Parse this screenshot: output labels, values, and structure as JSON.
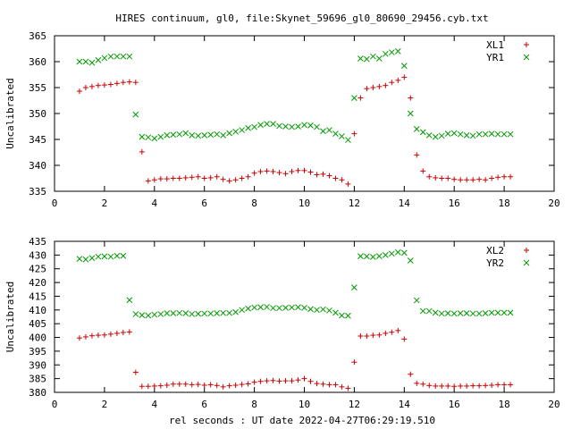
{
  "chart_data": {
    "title": "HIRES continuum, gl0, file:Skynet_59696_gl0_80690_29456.cyb.txt",
    "xlabel": "rel seconds : UT date 2022-04-27T06:29:19.510",
    "colors": {
      "series1": "#cc0000",
      "series2": "#009900"
    },
    "panels": [
      {
        "type": "scatter",
        "ylabel": "Uncalibrated",
        "xlim": [
          0,
          20
        ],
        "ylim": [
          335,
          365
        ],
        "xticks": [
          0,
          2,
          4,
          6,
          8,
          10,
          12,
          14,
          16,
          18,
          20
        ],
        "yticks": [
          335,
          340,
          345,
          350,
          355,
          360,
          365
        ],
        "grid": false,
        "legend_position": "top-right",
        "series": [
          {
            "name": "XL1",
            "marker": "plus",
            "x": [
              1.0,
              1.25,
              1.5,
              1.75,
              2.0,
              2.25,
              2.5,
              2.75,
              3.0,
              3.25,
              3.5,
              3.75,
              4.0,
              4.25,
              4.5,
              4.75,
              5.0,
              5.25,
              5.5,
              5.75,
              6.0,
              6.25,
              6.5,
              6.75,
              7.0,
              7.25,
              7.5,
              7.75,
              8.0,
              8.25,
              8.5,
              8.75,
              9.0,
              9.25,
              9.5,
              9.75,
              10.0,
              10.25,
              10.5,
              10.75,
              11.0,
              11.25,
              11.5,
              11.75,
              12.0,
              12.25,
              12.5,
              12.75,
              13.0,
              13.25,
              13.5,
              13.75,
              14.0,
              14.25,
              14.5,
              14.75,
              15.0,
              15.25,
              15.5,
              15.75,
              16.0,
              16.25,
              16.5,
              16.75,
              17.0,
              17.25,
              17.5,
              17.75,
              18.0,
              18.25
            ],
            "y": [
              354.3,
              355.0,
              355.2,
              355.4,
              355.5,
              355.6,
              355.8,
              356.0,
              356.1,
              356.0,
              342.6,
              337.0,
              337.2,
              337.4,
              337.4,
              337.5,
              337.5,
              337.6,
              337.7,
              337.8,
              337.5,
              337.6,
              337.8,
              337.3,
              337.0,
              337.2,
              337.5,
              337.8,
              338.5,
              338.8,
              338.9,
              338.8,
              338.6,
              338.4,
              338.8,
              339.0,
              339.0,
              338.7,
              338.2,
              338.3,
              338.0,
              337.5,
              337.2,
              336.4,
              346.1,
              353.0,
              354.8,
              355.0,
              355.2,
              355.4,
              356.0,
              356.4,
              357.0,
              353.0,
              342.0,
              338.9,
              337.8,
              337.6,
              337.5,
              337.5,
              337.3,
              337.2,
              337.2,
              337.2,
              337.3,
              337.2,
              337.5,
              337.7,
              337.8,
              337.8
            ]
          },
          {
            "name": "YR1",
            "marker": "cross",
            "x": [
              1.0,
              1.25,
              1.5,
              1.75,
              2.0,
              2.25,
              2.5,
              2.75,
              3.0,
              3.25,
              3.5,
              3.75,
              4.0,
              4.25,
              4.5,
              4.75,
              5.0,
              5.25,
              5.5,
              5.75,
              6.0,
              6.25,
              6.5,
              6.75,
              7.0,
              7.25,
              7.5,
              7.75,
              8.0,
              8.25,
              8.5,
              8.75,
              9.0,
              9.25,
              9.5,
              9.75,
              10.0,
              10.25,
              10.5,
              10.75,
              11.0,
              11.25,
              11.5,
              11.75,
              12.0,
              12.25,
              12.5,
              12.75,
              13.0,
              13.25,
              13.5,
              13.75,
              14.0,
              14.25,
              14.5,
              14.75,
              15.0,
              15.25,
              15.5,
              15.75,
              16.0,
              16.25,
              16.5,
              16.75,
              17.0,
              17.25,
              17.5,
              17.75,
              18.0,
              18.25
            ],
            "y": [
              360.0,
              360.0,
              359.8,
              360.3,
              360.7,
              361.0,
              361.0,
              361.0,
              361.0,
              349.8,
              345.5,
              345.4,
              345.2,
              345.5,
              345.8,
              345.9,
              346.0,
              346.2,
              345.8,
              345.7,
              345.8,
              345.9,
              346.0,
              345.8,
              346.2,
              346.5,
              346.8,
              347.2,
              347.4,
              347.8,
              348.0,
              348.0,
              347.6,
              347.5,
              347.4,
              347.5,
              347.8,
              347.7,
              347.4,
              346.6,
              346.8,
              346.1,
              345.6,
              344.9,
              353.0,
              360.6,
              360.5,
              361.0,
              360.6,
              361.5,
              361.8,
              362.0,
              359.2,
              350.0,
              347.0,
              346.4,
              345.8,
              345.5,
              345.7,
              346.1,
              346.2,
              346.0,
              345.8,
              345.7,
              346.0,
              346.0,
              346.1,
              346.0,
              346.0,
              346.0
            ]
          }
        ]
      },
      {
        "type": "scatter",
        "ylabel": "Uncalibrated",
        "xlim": [
          0,
          20
        ],
        "ylim": [
          380,
          435
        ],
        "xticks": [
          0,
          2,
          4,
          6,
          8,
          10,
          12,
          14,
          16,
          18,
          20
        ],
        "yticks": [
          380,
          385,
          390,
          395,
          400,
          405,
          410,
          415,
          420,
          425,
          430,
          435
        ],
        "grid": false,
        "legend_position": "top-right",
        "series": [
          {
            "name": "XL2",
            "marker": "plus",
            "x": [
              1.0,
              1.25,
              1.5,
              1.75,
              2.0,
              2.25,
              2.5,
              2.75,
              3.0,
              3.25,
              3.5,
              3.75,
              4.0,
              4.25,
              4.5,
              4.75,
              5.0,
              5.25,
              5.5,
              5.75,
              6.0,
              6.25,
              6.5,
              6.75,
              7.0,
              7.25,
              7.5,
              7.75,
              8.0,
              8.25,
              8.5,
              8.75,
              9.0,
              9.25,
              9.5,
              9.75,
              10.0,
              10.25,
              10.5,
              10.75,
              11.0,
              11.25,
              11.5,
              11.75,
              12.0,
              12.25,
              12.5,
              12.75,
              13.0,
              13.25,
              13.5,
              13.75,
              14.0,
              14.25,
              14.5,
              14.75,
              15.0,
              15.25,
              15.5,
              15.75,
              16.0,
              16.25,
              16.5,
              16.75,
              17.0,
              17.25,
              17.5,
              17.75,
              18.0,
              18.25
            ],
            "y": [
              399.8,
              400.2,
              400.6,
              400.8,
              400.9,
              401.2,
              401.5,
              401.8,
              402.0,
              387.3,
              382.2,
              382.2,
              382.3,
              382.4,
              382.6,
              383.0,
              383.0,
              383.0,
              382.8,
              382.9,
              382.6,
              382.8,
              382.5,
              382.0,
              382.4,
              382.6,
              382.9,
              383.1,
              383.7,
              384.0,
              384.2,
              384.3,
              384.1,
              384.2,
              384.2,
              384.5,
              385.0,
              384.0,
              383.2,
              383.0,
              382.8,
              382.8,
              382.0,
              381.5,
              391.0,
              400.5,
              400.5,
              400.8,
              400.9,
              401.5,
              401.9,
              402.5,
              399.4,
              386.6,
              383.3,
              383.0,
              382.5,
              382.3,
              382.3,
              382.3,
              382.2,
              382.3,
              382.3,
              382.4,
              382.4,
              382.5,
              382.6,
              382.8,
              382.8,
              382.8
            ]
          },
          {
            "name": "YR2",
            "marker": "cross",
            "x": [
              1.0,
              1.25,
              1.5,
              1.75,
              2.0,
              2.25,
              2.5,
              2.75,
              3.0,
              3.25,
              3.5,
              3.75,
              4.0,
              4.25,
              4.5,
              4.75,
              5.0,
              5.25,
              5.5,
              5.75,
              6.0,
              6.25,
              6.5,
              6.75,
              7.0,
              7.25,
              7.5,
              7.75,
              8.0,
              8.25,
              8.5,
              8.75,
              9.0,
              9.25,
              9.5,
              9.75,
              10.0,
              10.25,
              10.5,
              10.75,
              11.0,
              11.25,
              11.5,
              11.75,
              12.0,
              12.25,
              12.5,
              12.75,
              13.0,
              13.25,
              13.5,
              13.75,
              14.0,
              14.25,
              14.5,
              14.75,
              15.0,
              15.25,
              15.5,
              15.75,
              16.0,
              16.25,
              16.5,
              16.75,
              17.0,
              17.25,
              17.5,
              17.75,
              18.0,
              18.25
            ],
            "y": [
              428.6,
              428.4,
              428.9,
              429.4,
              429.5,
              429.4,
              429.7,
              429.7,
              413.6,
              408.5,
              408.1,
              408.0,
              408.3,
              408.5,
              408.8,
              408.8,
              408.9,
              408.8,
              408.5,
              408.6,
              408.7,
              408.7,
              408.8,
              408.9,
              408.9,
              409.2,
              410.0,
              410.5,
              410.9,
              411.0,
              411.1,
              410.7,
              410.7,
              410.8,
              410.9,
              411.0,
              410.8,
              410.3,
              410.0,
              410.2,
              409.8,
              409.0,
              408.0,
              407.9,
              418.2,
              429.6,
              429.5,
              429.3,
              429.6,
              430.0,
              430.5,
              431.0,
              430.8,
              428.0,
              413.5,
              409.6,
              409.6,
              409.0,
              408.7,
              408.8,
              408.7,
              408.8,
              408.8,
              408.7,
              408.7,
              408.8,
              409.0,
              409.0,
              409.0,
              409.0
            ]
          }
        ]
      }
    ]
  }
}
